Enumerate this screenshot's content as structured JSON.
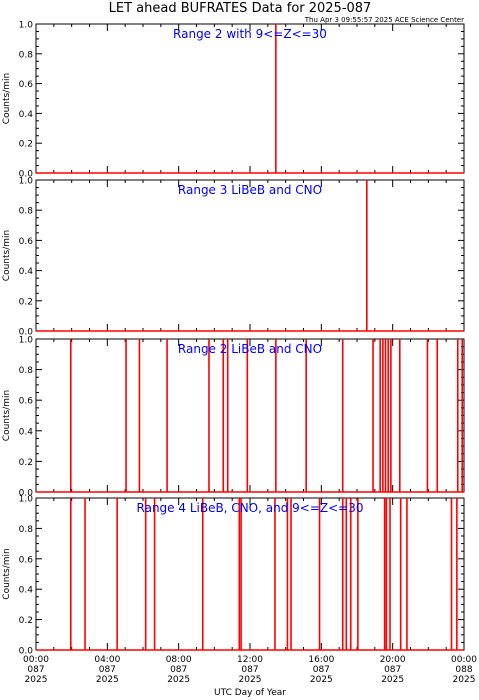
{
  "page": {
    "title": "LET ahead BUFRATES Data for 2025-087",
    "timestamp": "Thu Apr  3 09:55:57 2025 ACE Science Center",
    "xlabel": "UTC Day of Year"
  },
  "colors": {
    "axes": "#000000",
    "data": "#ff0000",
    "label": "#0000ff",
    "background": "#ffffff"
  },
  "chart_data": [
    {
      "type": "line",
      "title": "Range 2 with 9<=Z<=30",
      "ylabel": "Counts/min",
      "ylim": [
        0,
        1
      ],
      "yticks": [
        "0.0",
        "0.2",
        "0.4",
        "0.6",
        "0.8",
        "1.0"
      ],
      "xlim_hours": [
        0,
        24
      ],
      "spikes_hours": [
        13.45
      ]
    },
    {
      "type": "line",
      "title": "Range 3 LiBeB and CNO",
      "ylabel": "Counts/min",
      "ylim": [
        0,
        1
      ],
      "yticks": [
        "0.0",
        "0.2",
        "0.4",
        "0.6",
        "0.8",
        "1.0"
      ],
      "xlim_hours": [
        0,
        24
      ],
      "spikes_hours": [
        18.55
      ]
    },
    {
      "type": "line",
      "title": "Range 2 LiBeB and CNO",
      "ylabel": "Counts/min",
      "ylim": [
        0,
        1
      ],
      "yticks": [
        "0.0",
        "0.2",
        "0.4",
        "0.6",
        "0.8",
        "1.0"
      ],
      "xlim_hours": [
        0,
        24
      ],
      "spikes_hours": [
        1.95,
        5.05,
        5.8,
        7.35,
        9.7,
        10.5,
        10.75,
        11.85,
        13.45,
        15.15,
        17.2,
        18.9,
        19.3,
        19.45,
        19.6,
        19.75,
        19.9,
        20.4,
        21.95,
        22.5,
        23.65,
        23.9
      ]
    },
    {
      "type": "line",
      "title": "Range 4 LiBeB, CNO, and 9<=Z<=30",
      "ylabel": "Counts/min",
      "ylim": [
        0,
        1
      ],
      "yticks": [
        "0.0",
        "0.2",
        "0.4",
        "0.6",
        "0.8",
        "1.0"
      ],
      "xlim_hours": [
        0,
        24
      ],
      "spikes_hours": [
        1.95,
        2.75,
        4.55,
        6.15,
        6.65,
        9.35,
        11.4,
        11.5,
        13.4,
        14.1,
        14.3,
        15.9,
        17.2,
        17.4,
        17.65,
        18.05,
        19.55,
        19.65,
        19.85,
        20.45,
        20.8,
        23.3,
        23.6
      ]
    }
  ],
  "xaxis": {
    "ticks": [
      {
        "hour": 0,
        "time": "00:00",
        "doy": "087",
        "year": "2025"
      },
      {
        "hour": 4,
        "time": "04:00",
        "doy": "087",
        "year": "2025"
      },
      {
        "hour": 8,
        "time": "08:00",
        "doy": "087",
        "year": "2025"
      },
      {
        "hour": 12,
        "time": "12:00",
        "doy": "087",
        "year": "2025"
      },
      {
        "hour": 16,
        "time": "16:00",
        "doy": "087",
        "year": "2025"
      },
      {
        "hour": 20,
        "time": "20:00",
        "doy": "087",
        "year": "2025"
      },
      {
        "hour": 24,
        "time": "00:00",
        "doy": "088",
        "year": "2025"
      }
    ]
  }
}
